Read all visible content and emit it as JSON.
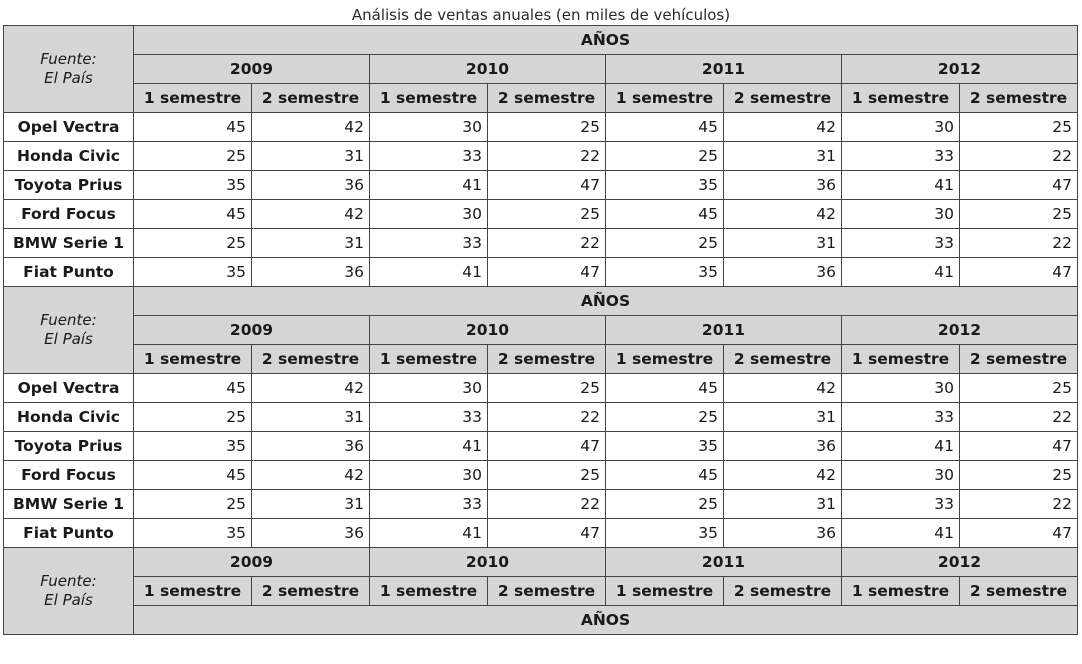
{
  "caption": "Análisis de ventas anuales (en miles de vehículos)",
  "source_line1": "Fuente:",
  "source_line2": "El País",
  "anos_label": "AÑOS",
  "years": [
    "2009",
    "2010",
    "2011",
    "2012"
  ],
  "semesters": [
    "1 semestre",
    "2 semestre"
  ],
  "rows": [
    {
      "label": "Opel Vectra",
      "values": [
        "45",
        "42",
        "30",
        "25",
        "45",
        "42",
        "30",
        "25"
      ]
    },
    {
      "label": "Honda Civic",
      "values": [
        "25",
        "31",
        "33",
        "22",
        "25",
        "31",
        "33",
        "22"
      ]
    },
    {
      "label": "Toyota Prius",
      "values": [
        "35",
        "36",
        "41",
        "47",
        "35",
        "36",
        "41",
        "47"
      ]
    },
    {
      "label": "Ford Focus",
      "values": [
        "45",
        "42",
        "30",
        "25",
        "45",
        "42",
        "30",
        "25"
      ]
    },
    {
      "label": "BMW Serie 1",
      "values": [
        "25",
        "31",
        "33",
        "22",
        "25",
        "31",
        "33",
        "22"
      ]
    },
    {
      "label": "Fiat Punto",
      "values": [
        "35",
        "36",
        "41",
        "47",
        "35",
        "36",
        "41",
        "47"
      ]
    }
  ]
}
